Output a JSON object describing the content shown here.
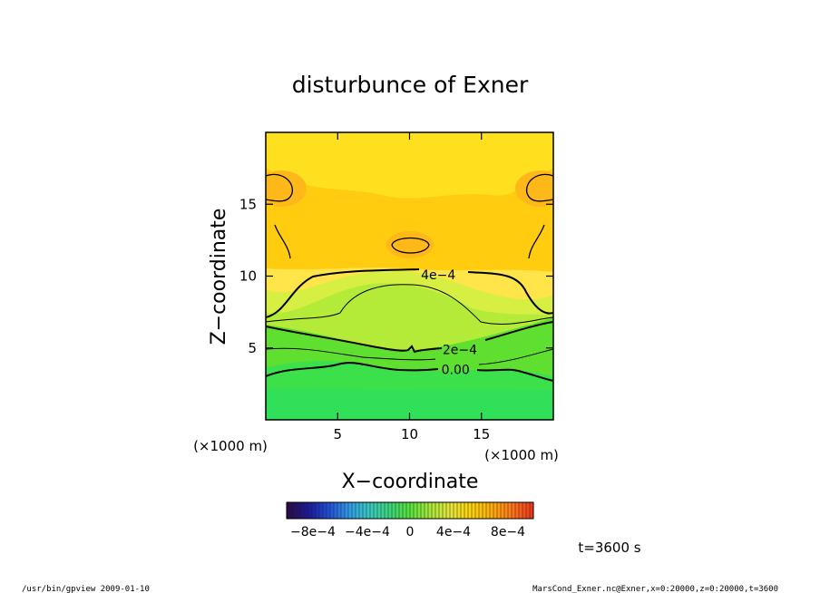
{
  "chart_data": {
    "type": "heatmap",
    "title": "disturbunce of Exner",
    "xlabel": "X−coordinate",
    "ylabel": "Z−coordinate",
    "x_unit": "(×1000 m)",
    "y_unit": "(×1000 m)",
    "xlim": [
      0,
      20
    ],
    "ylim": [
      0,
      20
    ],
    "x_ticks": [
      5,
      10,
      15
    ],
    "y_ticks": [
      5,
      10,
      15
    ],
    "x_tick_labels": [
      "5",
      "10",
      "15"
    ],
    "y_tick_labels": [
      "5",
      "10",
      "15"
    ],
    "contour_labels": [
      {
        "text": "4e−4",
        "x": 12.0,
        "y": 10.1
      },
      {
        "text": "2e−4",
        "x": 13.5,
        "y": 4.9
      },
      {
        "text": "0.00",
        "x": 13.2,
        "y": 3.5
      }
    ],
    "colorbar": {
      "range": [
        -0.001,
        0.001
      ],
      "tick_labels": [
        "−8e−4",
        "−4e−4",
        "0",
        "4e−4",
        "8e−4"
      ],
      "colors": [
        "#2a0a4a",
        "#1a1a9a",
        "#1e4fd8",
        "#2f9be6",
        "#39c9c3",
        "#3ad67a",
        "#56e23a",
        "#a8e83a",
        "#e6e63a",
        "#ffd400",
        "#ffb000",
        "#ff7a1a",
        "#ee3a1a"
      ]
    },
    "annotation": "t=3600 s"
  },
  "footer": {
    "left": "/usr/bin/gpview   2009-01-10",
    "right": "MarsCond_Exner.nc@Exner,x=0:20000,z=0:20000,t=3600"
  }
}
